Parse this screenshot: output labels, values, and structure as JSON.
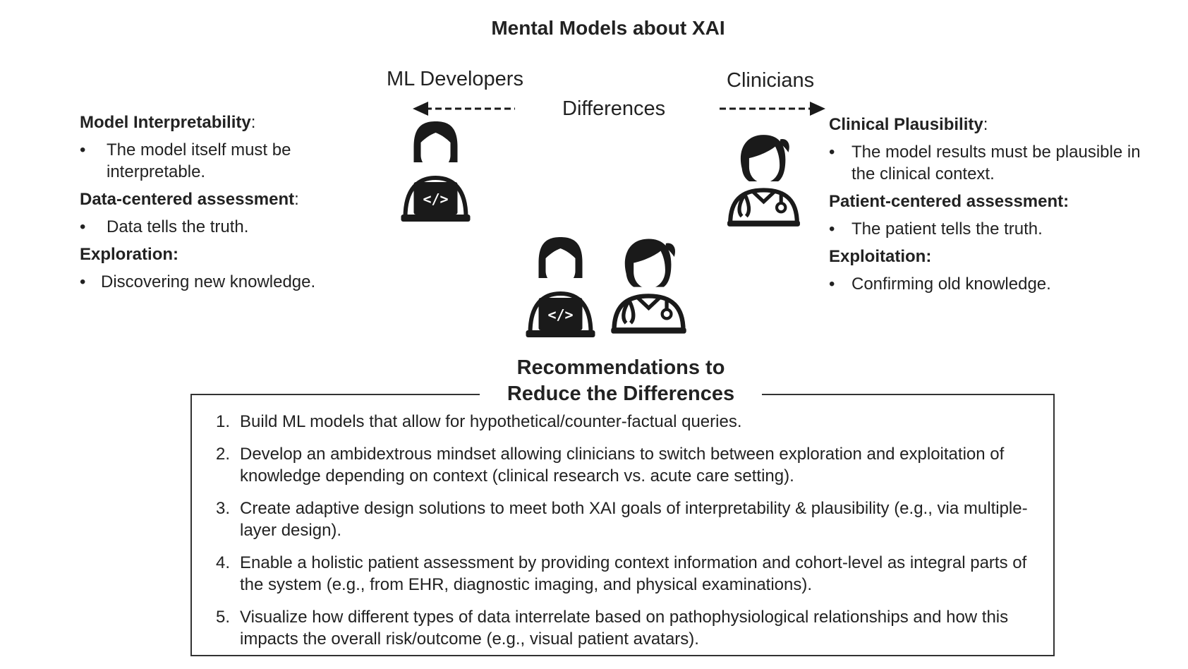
{
  "title": "Mental Models about XAI",
  "middle_label": "Differences",
  "left": {
    "role": "ML Developers",
    "sections": [
      {
        "heading": "Model Interpretability",
        "suffix": ":",
        "bullet": "The model itself must be interpretable."
      },
      {
        "heading": "Data-centered assessment",
        "suffix": ":",
        "bullet": "Data tells the truth."
      },
      {
        "heading": "Exploration:",
        "suffix": "",
        "bullet": "Discovering new knowledge."
      }
    ]
  },
  "right": {
    "role": "Clinicians",
    "sections": [
      {
        "heading": "Clinical Plausibility",
        "suffix": ":",
        "bullet": "The model results must be plausible in the clinical context."
      },
      {
        "heading": "Patient-centered assessment:",
        "suffix": "",
        "bullet": "The patient tells the truth."
      },
      {
        "heading": "Exploitation:",
        "suffix": "",
        "bullet": "Confirming old knowledge."
      }
    ]
  },
  "recommendations": {
    "title_line1": "Recommendations to",
    "title_line2": "Reduce the Differences",
    "items": [
      {
        "num": "1.",
        "text": "Build ML models that allow for hypothetical/counter-factual queries."
      },
      {
        "num": "2.",
        "text": "Develop an ambidextrous mindset allowing clinicians to switch between exploration and exploitation of knowledge depending on context (clinical research vs. acute care setting)."
      },
      {
        "num": "3.",
        "text": "Create adaptive design solutions to meet both XAI goals of interpretability & plausibility (e.g., via multiple-layer design)."
      },
      {
        "num": "4.",
        "text": "Enable a holistic patient assessment by providing context information and cohort-level as integral parts of the system (e.g., from EHR, diagnostic imaging, and physical examinations)."
      },
      {
        "num": "5.",
        "text": "Visualize how different types of data interrelate based on pathophysiological relationships and how this impacts the overall risk/outcome (e.g., visual patient avatars)."
      }
    ]
  },
  "icons": [
    "developer-icon",
    "clinician-icon",
    "arrow-left-icon",
    "arrow-right-icon"
  ],
  "colors": {
    "ink": "#222222",
    "icon": "#1a1a1a"
  }
}
